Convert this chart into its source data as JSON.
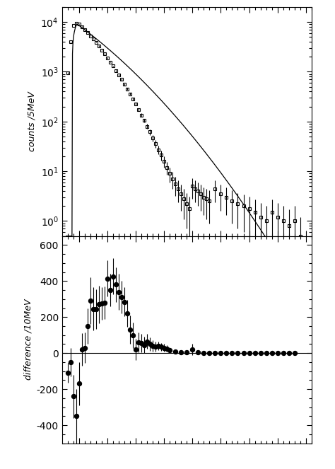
{
  "upper_x": [
    1060,
    1070,
    1080,
    1090,
    1100,
    1110,
    1120,
    1130,
    1140,
    1150,
    1160,
    1170,
    1180,
    1190,
    1200,
    1210,
    1220,
    1230,
    1240,
    1250,
    1260,
    1270,
    1280,
    1290,
    1300,
    1310,
    1320,
    1330,
    1340,
    1350,
    1360,
    1370,
    1380,
    1390,
    1400,
    1410,
    1420,
    1430,
    1440,
    1450,
    1460,
    1470,
    1480,
    1490,
    1500,
    1510,
    1520,
    1530,
    1540,
    1550,
    1560,
    1580,
    1600,
    1620,
    1640,
    1660,
    1680,
    1700,
    1720,
    1740,
    1760,
    1780,
    1800,
    1820,
    1840,
    1860,
    1880
  ],
  "upper_y": [
    950,
    4000,
    8500,
    9300,
    9000,
    8100,
    7100,
    6200,
    5300,
    4600,
    3900,
    3300,
    2750,
    2300,
    1900,
    1570,
    1300,
    1050,
    860,
    700,
    560,
    450,
    360,
    285,
    225,
    175,
    135,
    105,
    80,
    62,
    47,
    36,
    27,
    21,
    16,
    12,
    9.0,
    7.0,
    5.5,
    4.5,
    3.5,
    2.8,
    2.2,
    1.8,
    5.0,
    4.5,
    4.0,
    3.5,
    3.0,
    2.8,
    2.5,
    4.5,
    3.5,
    3.0,
    2.5,
    2.2,
    2.0,
    1.8,
    1.5,
    1.2,
    1.0,
    1.5,
    1.2,
    1.0,
    0.8,
    1.0,
    0.5
  ],
  "upper_yerr": [
    40,
    65,
    92,
    97,
    95,
    90,
    84,
    79,
    73,
    68,
    62,
    57,
    52,
    48,
    44,
    40,
    36,
    32,
    29,
    26,
    24,
    21,
    19,
    17,
    15,
    13,
    12,
    10,
    9,
    8,
    7,
    6,
    5.2,
    4.6,
    4.0,
    3.5,
    3.0,
    2.6,
    2.3,
    2.1,
    1.9,
    1.7,
    1.5,
    1.3,
    2.2,
    2.1,
    2.0,
    1.9,
    1.7,
    1.7,
    1.6,
    2.1,
    1.9,
    1.7,
    1.6,
    1.5,
    1.4,
    1.3,
    1.2,
    1.1,
    1.0,
    1.2,
    1.1,
    1.0,
    0.9,
    1.0,
    0.7
  ],
  "lower_x": [
    1060,
    1070,
    1080,
    1090,
    1100,
    1110,
    1120,
    1130,
    1140,
    1150,
    1160,
    1170,
    1180,
    1190,
    1200,
    1210,
    1220,
    1230,
    1240,
    1250,
    1260,
    1270,
    1280,
    1290,
    1300,
    1310,
    1320,
    1330,
    1340,
    1350,
    1360,
    1370,
    1380,
    1390,
    1400,
    1410,
    1420,
    1440,
    1460,
    1480,
    1500,
    1520,
    1540,
    1560,
    1580,
    1600,
    1620,
    1640,
    1660,
    1680,
    1700,
    1720,
    1740,
    1760,
    1780,
    1800,
    1820,
    1840,
    1860
  ],
  "lower_y": [
    -110,
    -50,
    -240,
    -350,
    -170,
    20,
    30,
    150,
    290,
    245,
    245,
    270,
    275,
    280,
    415,
    350,
    425,
    380,
    340,
    310,
    285,
    220,
    130,
    100,
    20,
    60,
    55,
    45,
    65,
    50,
    40,
    35,
    40,
    35,
    30,
    25,
    15,
    10,
    5,
    5,
    20,
    5,
    2,
    0,
    0,
    0,
    0,
    0,
    0,
    0,
    0,
    0,
    0,
    0,
    0,
    0,
    0,
    0,
    0
  ],
  "lower_yerr": [
    55,
    80,
    120,
    150,
    120,
    90,
    85,
    100,
    130,
    120,
    110,
    105,
    90,
    90,
    100,
    90,
    100,
    95,
    100,
    90,
    80,
    75,
    80,
    70,
    60,
    55,
    50,
    45,
    40,
    38,
    30,
    28,
    25,
    22,
    20,
    18,
    15,
    12,
    10,
    8,
    30,
    6,
    5,
    4,
    3,
    3,
    3,
    3,
    3,
    3,
    3,
    3,
    3,
    3,
    3,
    3,
    3,
    3,
    3
  ],
  "upper_ylabel": "counts /5MeV",
  "lower_ylabel": "difference /10MeV",
  "upper_ylim_log": [
    0.5,
    20000
  ],
  "lower_ylim": [
    -500,
    650
  ],
  "xlim": [
    1040,
    1920
  ],
  "bg_color": "#ffffff",
  "data_color": "#000000",
  "curve_color": "#000000"
}
